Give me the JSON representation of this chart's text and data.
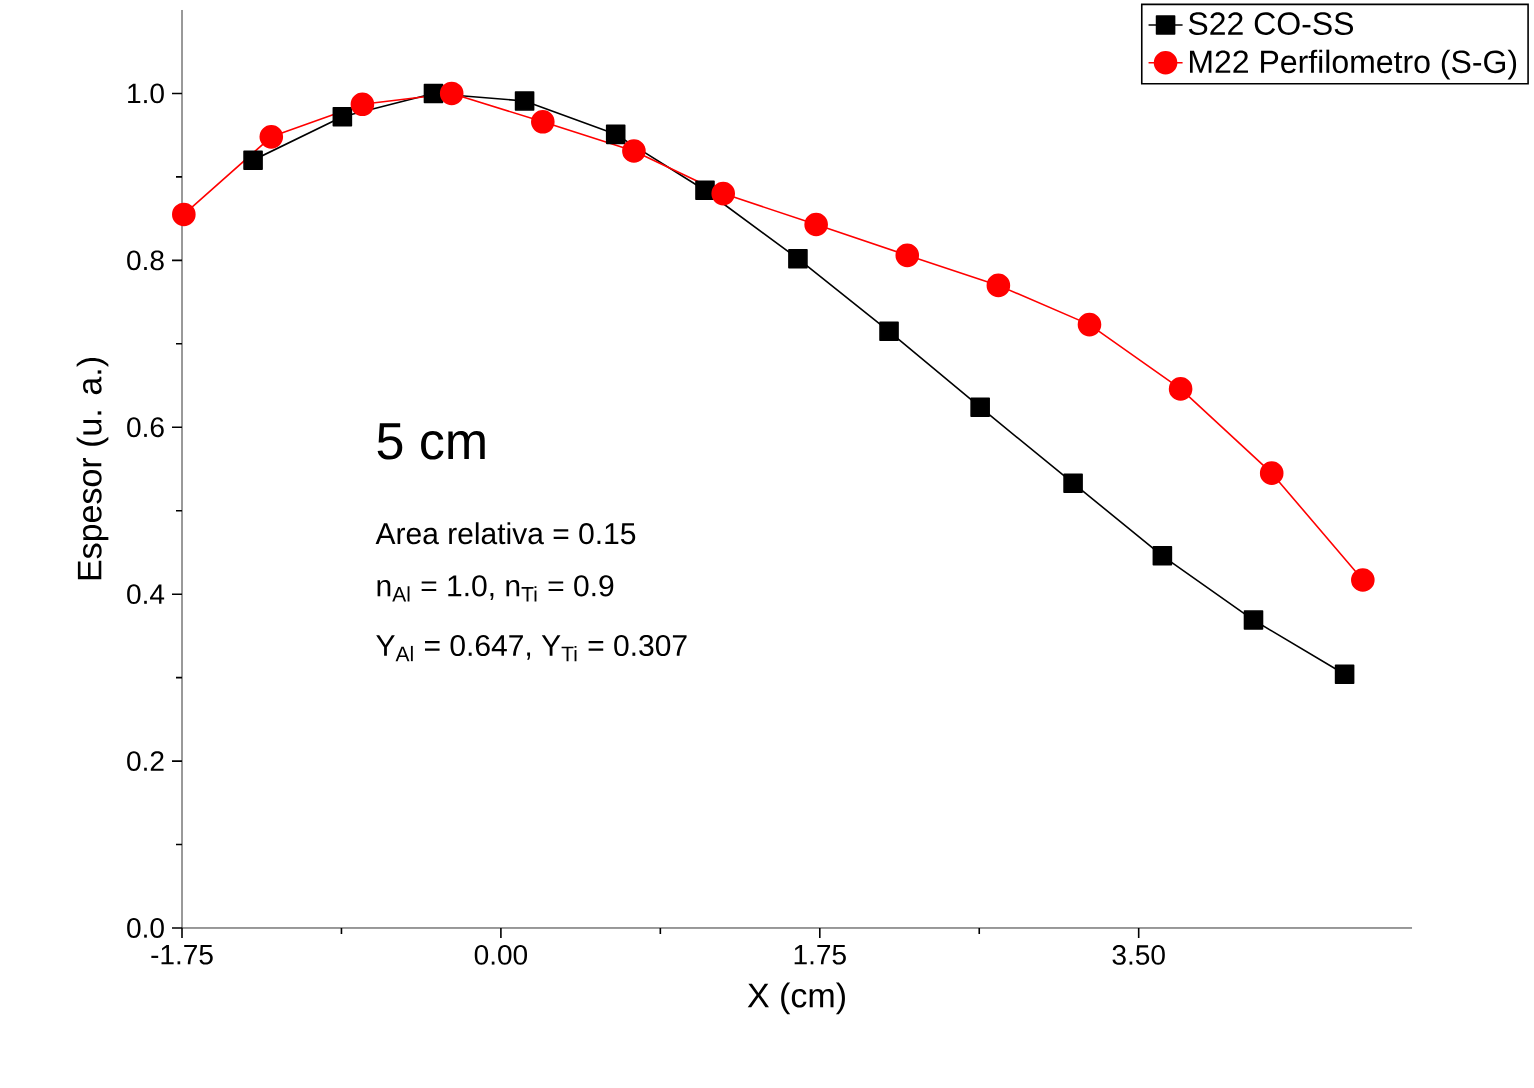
{
  "chart_data": {
    "type": "line",
    "xlabel": "X (cm)",
    "ylabel": "Espesor (u. a.)",
    "annotations": [
      "5 cm",
      "Area relativa = 0.15",
      "n$_{Al}$ = 1.0, n$_{Ti}$ = 0.9",
      "Y$_{Al}$ = 0.647, Y$_{Ti}$ = 0.307"
    ],
    "series": [
      {
        "name": "S22 CO-SS",
        "color": "#000000",
        "marker": "square",
        "x": [
          -1.36,
          -0.87,
          -0.37,
          0.13,
          0.63,
          1.12,
          1.63,
          2.13,
          2.63,
          3.14,
          3.63,
          4.13,
          4.63
        ],
        "values": [
          0.92,
          0.972,
          1.0,
          0.991,
          0.951,
          0.884,
          0.802,
          0.715,
          0.624,
          0.533,
          0.446,
          0.369,
          0.304
        ]
      },
      {
        "name": "M22 Perfilometro (S-G)",
        "color": "#ff0000",
        "marker": "circle",
        "x": [
          -1.74,
          -1.26,
          -0.76,
          -0.27,
          0.23,
          0.73,
          1.22,
          1.73,
          2.23,
          2.73,
          3.23,
          3.73,
          4.23,
          4.73
        ],
        "values": [
          0.855,
          0.948,
          0.987,
          1.0,
          0.966,
          0.931,
          0.88,
          0.843,
          0.806,
          0.77,
          0.723,
          0.646,
          0.545,
          0.417
        ]
      }
    ],
    "xlim": [
      -1.75,
      5.0
    ],
    "ylim": [
      0,
      1.1
    ],
    "xticks": [
      {
        "value": -1.75,
        "label": "-1.75"
      },
      {
        "value": 0,
        "label": "0.00"
      },
      {
        "value": 1.75,
        "label": "1.75"
      },
      {
        "value": 3.5,
        "label": "3.50"
      }
    ],
    "yticks": [
      {
        "value": 0,
        "label": "0.0"
      },
      {
        "value": 0.2,
        "label": "0.2"
      },
      {
        "value": 0.4,
        "label": "0.4"
      },
      {
        "value": 0.6,
        "label": "0.6"
      },
      {
        "value": 0.8,
        "label": "0.8"
      },
      {
        "value": 1.0,
        "label": "1.0"
      }
    ],
    "legend": "top right",
    "grid": false,
    "line_style": "solid"
  }
}
